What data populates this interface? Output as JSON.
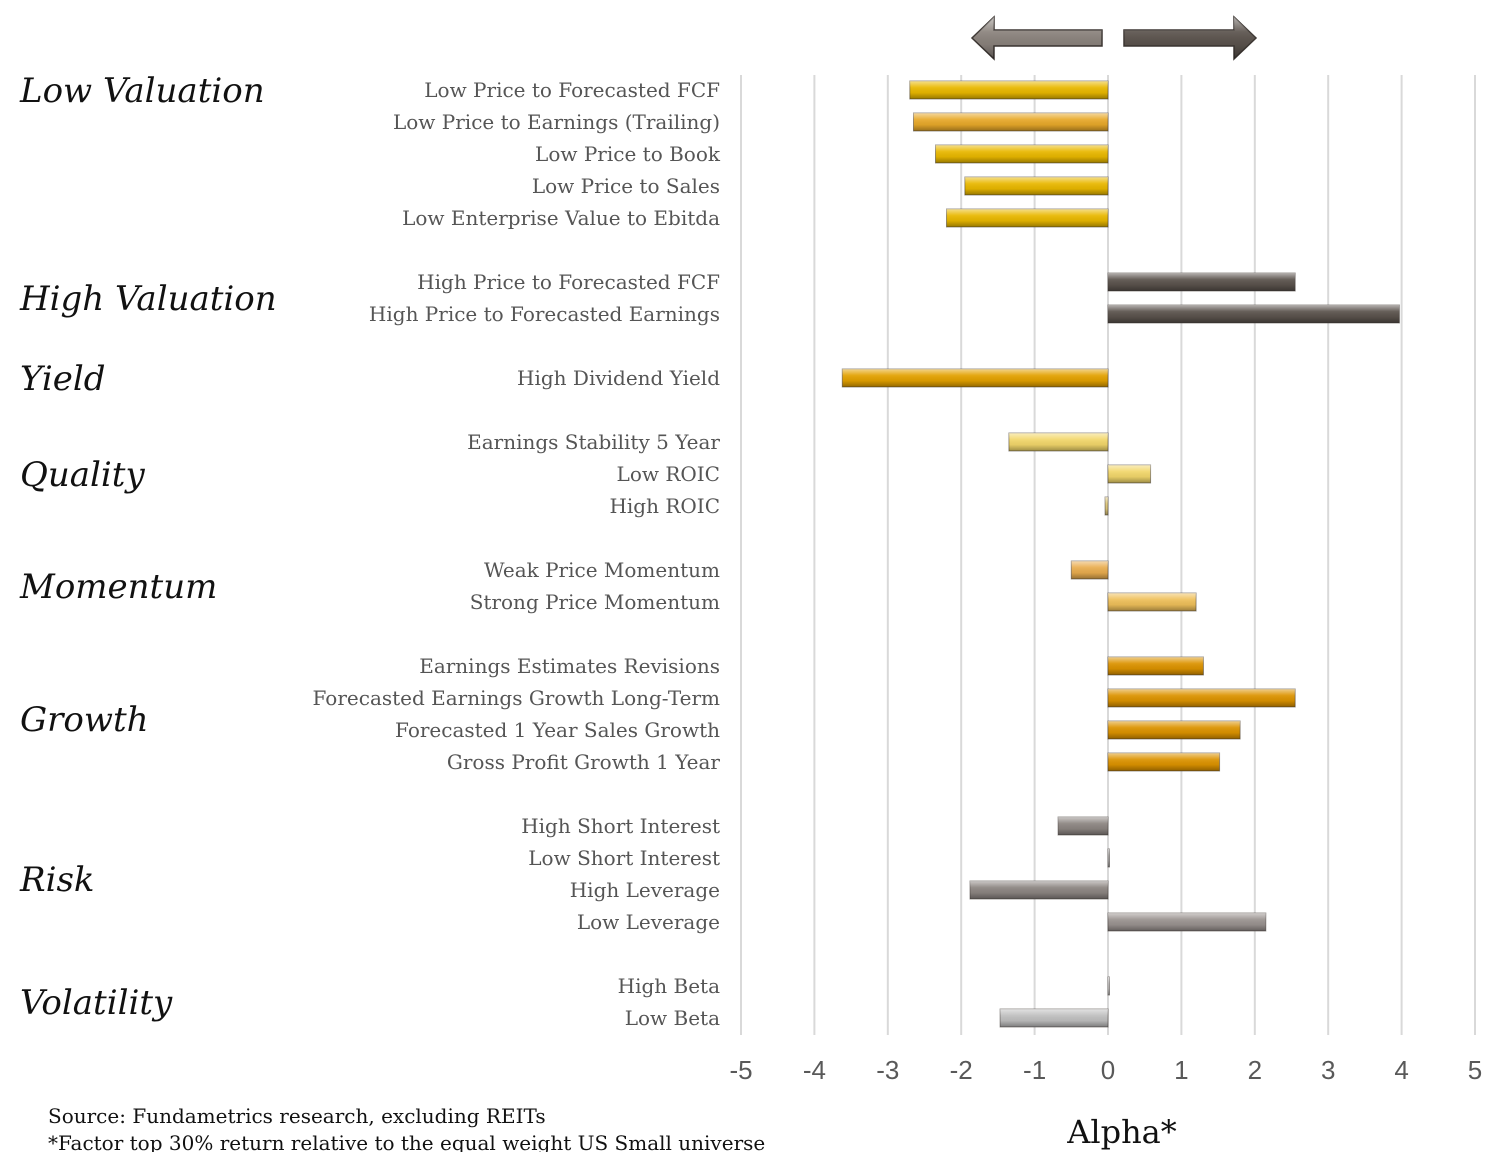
{
  "chart_data": {
    "type": "bar",
    "orientation": "horizontal",
    "xlabel": "Alpha*",
    "xlim": [
      -5,
      5
    ],
    "xticks": [
      "-5",
      "-4",
      "-3",
      "-2",
      "-1",
      "0",
      "1",
      "2",
      "3",
      "4",
      "5"
    ],
    "grid": true,
    "groups": [
      {
        "name": "Low Valuation",
        "color": "#e9b800",
        "items": [
          {
            "label": "Low Price to Forecasted FCF",
            "value": -2.7,
            "color": "#e9b800"
          },
          {
            "label": "Low Price to Earnings (Trailing)",
            "value": -2.65,
            "color": "#e8a92a"
          },
          {
            "label": "Low Price to Book",
            "value": -2.35,
            "color": "#e9b800"
          },
          {
            "label": "Low Price to Sales",
            "value": -1.95,
            "color": "#e9b800"
          },
          {
            "label": "Low Enterprise Value to Ebitda",
            "value": -2.2,
            "color": "#e9b800"
          }
        ]
      },
      {
        "name": "High Valuation",
        "color": "#5b534d",
        "items": [
          {
            "label": "High Price to Forecasted FCF",
            "value": 2.55,
            "color": "#5b534d"
          },
          {
            "label": "High Price to Forecasted Earnings",
            "value": 3.97,
            "color": "#5b534d"
          }
        ]
      },
      {
        "name": "Yield",
        "color": "#e3a100",
        "items": [
          {
            "label": "High Dividend Yield",
            "value": -3.62,
            "color": "#e3a100"
          }
        ]
      },
      {
        "name": "Quality",
        "color": "#f2d76b",
        "items": [
          {
            "label": "Earnings Stability 5 Year",
            "value": -1.35,
            "color": "#f2d76b"
          },
          {
            "label": "Low ROIC",
            "value": 0.58,
            "color": "#f2d76b"
          },
          {
            "label": "High ROIC",
            "value": -0.04,
            "color": "#e0c97a"
          }
        ]
      },
      {
        "name": "Momentum",
        "color": "#efc05a",
        "items": [
          {
            "label": "Weak Price Momentum",
            "value": -0.5,
            "color": "#e9ad4f"
          },
          {
            "label": "Strong Price Momentum",
            "value": 1.2,
            "color": "#efc05a"
          }
        ]
      },
      {
        "name": "Growth",
        "color": "#dc9300",
        "items": [
          {
            "label": "Earnings Estimates Revisions",
            "value": 1.3,
            "color": "#dc9300"
          },
          {
            "label": "Forecasted Earnings Growth Long-Term",
            "value": 2.55,
            "color": "#dc9300"
          },
          {
            "label": "Forecasted 1 Year Sales Growth",
            "value": 1.8,
            "color": "#dc9300"
          },
          {
            "label": "Gross Profit Growth 1 Year",
            "value": 1.52,
            "color": "#dc9300"
          }
        ]
      },
      {
        "name": "Risk",
        "color": "#8c8581",
        "items": [
          {
            "label": "High Short Interest",
            "value": -0.68,
            "color": "#8c8581"
          },
          {
            "label": "Low Short Interest",
            "value": 0.01,
            "color": "#bbbbbb"
          },
          {
            "label": "High Leverage",
            "value": -1.88,
            "color": "#8c8581"
          },
          {
            "label": "Low Leverage",
            "value": 2.15,
            "color": "#9a9390"
          }
        ]
      },
      {
        "name": "Volatility",
        "color": "#bfbfbf",
        "items": [
          {
            "label": "High Beta",
            "value": 0.01,
            "color": "#dddddd"
          },
          {
            "label": "Low Beta",
            "value": -1.47,
            "color": "#bfbfbf"
          }
        ]
      }
    ]
  },
  "footnotes": [
    "Source:  Fundametrics research, excluding REITs",
    "*Factor top 30% return relative to the equal weight US Small universe"
  ],
  "arrows": {
    "left_color": "#8a827c",
    "right_color": "#5b534d"
  }
}
